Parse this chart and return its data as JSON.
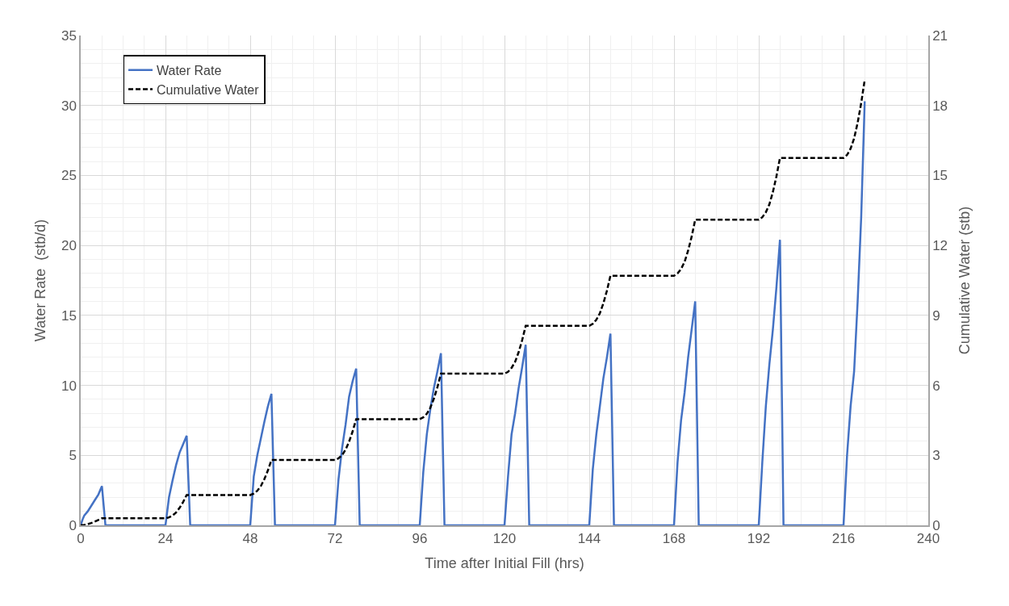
{
  "chart_data": {
    "type": "line",
    "xlabel": "Time after Initial Fill (hrs)",
    "ylabel": "Water Rate  (stb/d)",
    "y2label": "Cumulative Water (stb)",
    "xlim": [
      0,
      240
    ],
    "xticks": [
      0,
      24,
      48,
      72,
      96,
      120,
      144,
      168,
      192,
      216,
      240
    ],
    "ylim": [
      0,
      35
    ],
    "yticks": [
      0,
      5,
      10,
      15,
      20,
      25,
      30,
      35
    ],
    "y2lim": [
      0,
      21
    ],
    "y2ticks": [
      0,
      3,
      6,
      9,
      12,
      15,
      18,
      21
    ],
    "grid": true,
    "legend": "top left",
    "series": [
      {
        "name": "Water Rate",
        "color": "#4472c4",
        "line_style": "solid",
        "x": [
          0,
          0.5,
          1,
          2,
          3,
          4,
          5,
          6,
          7,
          24,
          25,
          26,
          27,
          28,
          29,
          30,
          31,
          48,
          49,
          50,
          51,
          52,
          53,
          54,
          55,
          72,
          73,
          74,
          75,
          76,
          77,
          78,
          79,
          96,
          97,
          98,
          99,
          100,
          101,
          102,
          103,
          120,
          121,
          122,
          123,
          124,
          125,
          126,
          127,
          144,
          145,
          146,
          147,
          148,
          149,
          150,
          151,
          168,
          169,
          170,
          171,
          172,
          173,
          174,
          175,
          192,
          193,
          194,
          195,
          196,
          197,
          198,
          199,
          216,
          217,
          218,
          219,
          220,
          221,
          222
        ],
        "values": [
          0,
          0.4,
          0.7,
          1.0,
          1.4,
          1.8,
          2.2,
          2.8,
          0,
          0,
          2.0,
          3.2,
          4.3,
          5.2,
          5.8,
          6.4,
          0,
          0,
          3.5,
          5.0,
          6.2,
          7.4,
          8.5,
          9.4,
          0,
          0,
          3.3,
          5.5,
          7.2,
          9.2,
          10.3,
          11.2,
          0,
          0,
          3.8,
          6.5,
          8.3,
          9.8,
          11.0,
          12.3,
          0,
          0,
          3.5,
          6.5,
          8.0,
          9.8,
          11.3,
          12.9,
          0,
          0,
          4.0,
          6.5,
          8.5,
          10.5,
          12.0,
          13.7,
          0,
          0,
          4.5,
          7.5,
          9.5,
          12.0,
          14.0,
          16.0,
          0,
          0,
          4.5,
          8.5,
          11.5,
          14.0,
          17.0,
          20.4,
          0,
          0,
          5.0,
          8.5,
          11.0,
          16.0,
          22.0,
          30.3
        ]
      },
      {
        "name": "Cumulative Water",
        "color": "#000000",
        "line_style": "dashed",
        "axis": "y2",
        "x": [
          0,
          1,
          2,
          3,
          4,
          5,
          6,
          24,
          25,
          26,
          27,
          28,
          29,
          30,
          48,
          49,
          50,
          51,
          52,
          53,
          54,
          72,
          73,
          74,
          75,
          76,
          77,
          78,
          96,
          97,
          98,
          99,
          100,
          101,
          102,
          120,
          121,
          122,
          123,
          124,
          125,
          126,
          144,
          145,
          146,
          147,
          148,
          149,
          150,
          168,
          169,
          170,
          171,
          172,
          173,
          174,
          192,
          193,
          194,
          195,
          196,
          197,
          198,
          216,
          217,
          218,
          219,
          220,
          221,
          222
        ],
        "values": [
          0,
          0.02,
          0.05,
          0.1,
          0.16,
          0.23,
          0.3,
          0.3,
          0.34,
          0.42,
          0.55,
          0.75,
          1.0,
          1.3,
          1.3,
          1.36,
          1.48,
          1.68,
          1.98,
          2.35,
          2.8,
          2.8,
          2.87,
          3.01,
          3.24,
          3.59,
          4.03,
          4.55,
          4.55,
          4.63,
          4.78,
          5.04,
          5.43,
          5.92,
          6.5,
          6.5,
          6.58,
          6.75,
          7.01,
          7.42,
          7.94,
          8.55,
          8.55,
          8.64,
          8.81,
          9.09,
          9.52,
          10.06,
          10.7,
          10.7,
          10.8,
          10.99,
          11.3,
          11.78,
          12.38,
          13.1,
          13.1,
          13.21,
          13.42,
          13.76,
          14.29,
          14.96,
          15.75,
          15.75,
          15.88,
          16.15,
          16.59,
          17.26,
          18.1,
          19.1
        ]
      }
    ]
  }
}
